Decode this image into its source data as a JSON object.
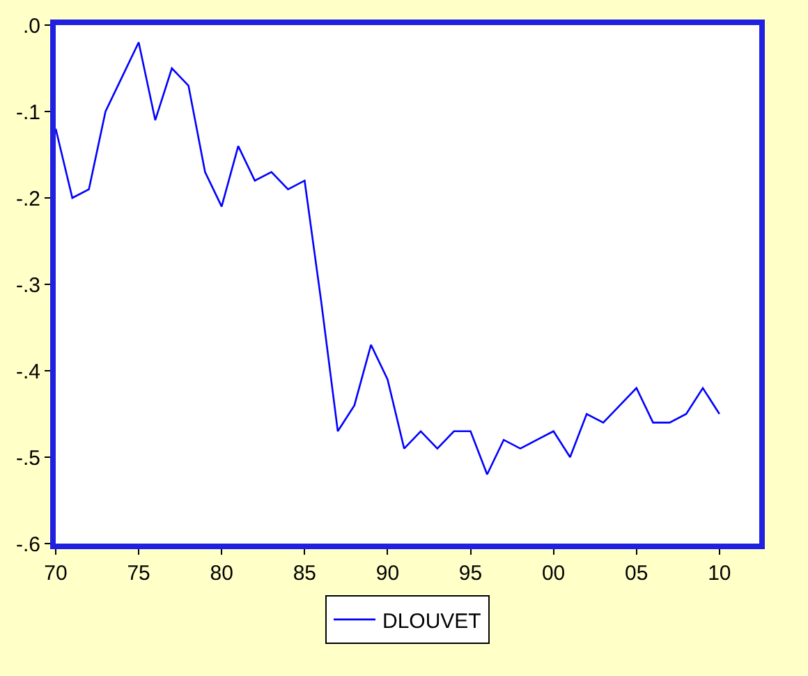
{
  "chart_data": {
    "type": "line",
    "x": [
      1970,
      1971,
      1972,
      1973,
      1974,
      1975,
      1976,
      1977,
      1978,
      1979,
      1980,
      1981,
      1982,
      1983,
      1984,
      1985,
      1986,
      1987,
      1988,
      1989,
      1990,
      1991,
      1992,
      1993,
      1994,
      1995,
      1996,
      1997,
      1998,
      1999,
      2000,
      2001,
      2002,
      2003,
      2004,
      2005,
      2006,
      2007,
      2008,
      2009,
      2010
    ],
    "series": [
      {
        "name": "DLOUVET",
        "color": "#0000ff",
        "values": [
          -0.12,
          -0.2,
          -0.19,
          -0.1,
          -0.06,
          -0.02,
          -0.11,
          -0.05,
          -0.07,
          -0.17,
          -0.21,
          -0.14,
          -0.18,
          -0.17,
          -0.19,
          -0.18,
          -0.32,
          -0.47,
          -0.44,
          -0.37,
          -0.41,
          -0.49,
          -0.47,
          -0.49,
          -0.47,
          -0.47,
          -0.52,
          -0.48,
          -0.49,
          -0.48,
          -0.47,
          -0.5,
          -0.45,
          -0.46,
          -0.44,
          -0.42,
          -0.46,
          -0.46,
          -0.45,
          -0.42,
          -0.45
        ]
      }
    ],
    "xlim": [
      1970,
      2012.4
    ],
    "xticks": [
      {
        "value": 1970,
        "label": "70"
      },
      {
        "value": 1975,
        "label": "75"
      },
      {
        "value": 1980,
        "label": "80"
      },
      {
        "value": 1985,
        "label": "85"
      },
      {
        "value": 1990,
        "label": "90"
      },
      {
        "value": 1995,
        "label": "95"
      },
      {
        "value": 2000,
        "label": "00"
      },
      {
        "value": 2005,
        "label": "05"
      },
      {
        "value": 2010,
        "label": "10"
      }
    ],
    "ylim": [
      -0.6,
      0
    ],
    "yticks": [
      {
        "value": -0.6,
        "label": "-.6"
      },
      {
        "value": -0.5,
        "label": "-.5"
      },
      {
        "value": -0.4,
        "label": "-.4"
      },
      {
        "value": -0.3,
        "label": "-.3"
      },
      {
        "value": -0.2,
        "label": "-.2"
      },
      {
        "value": -0.1,
        "label": "-.1"
      },
      {
        "value": 0,
        "label": ".0"
      }
    ],
    "legend": "bottom",
    "marker": "none",
    "line_style": "solid"
  }
}
